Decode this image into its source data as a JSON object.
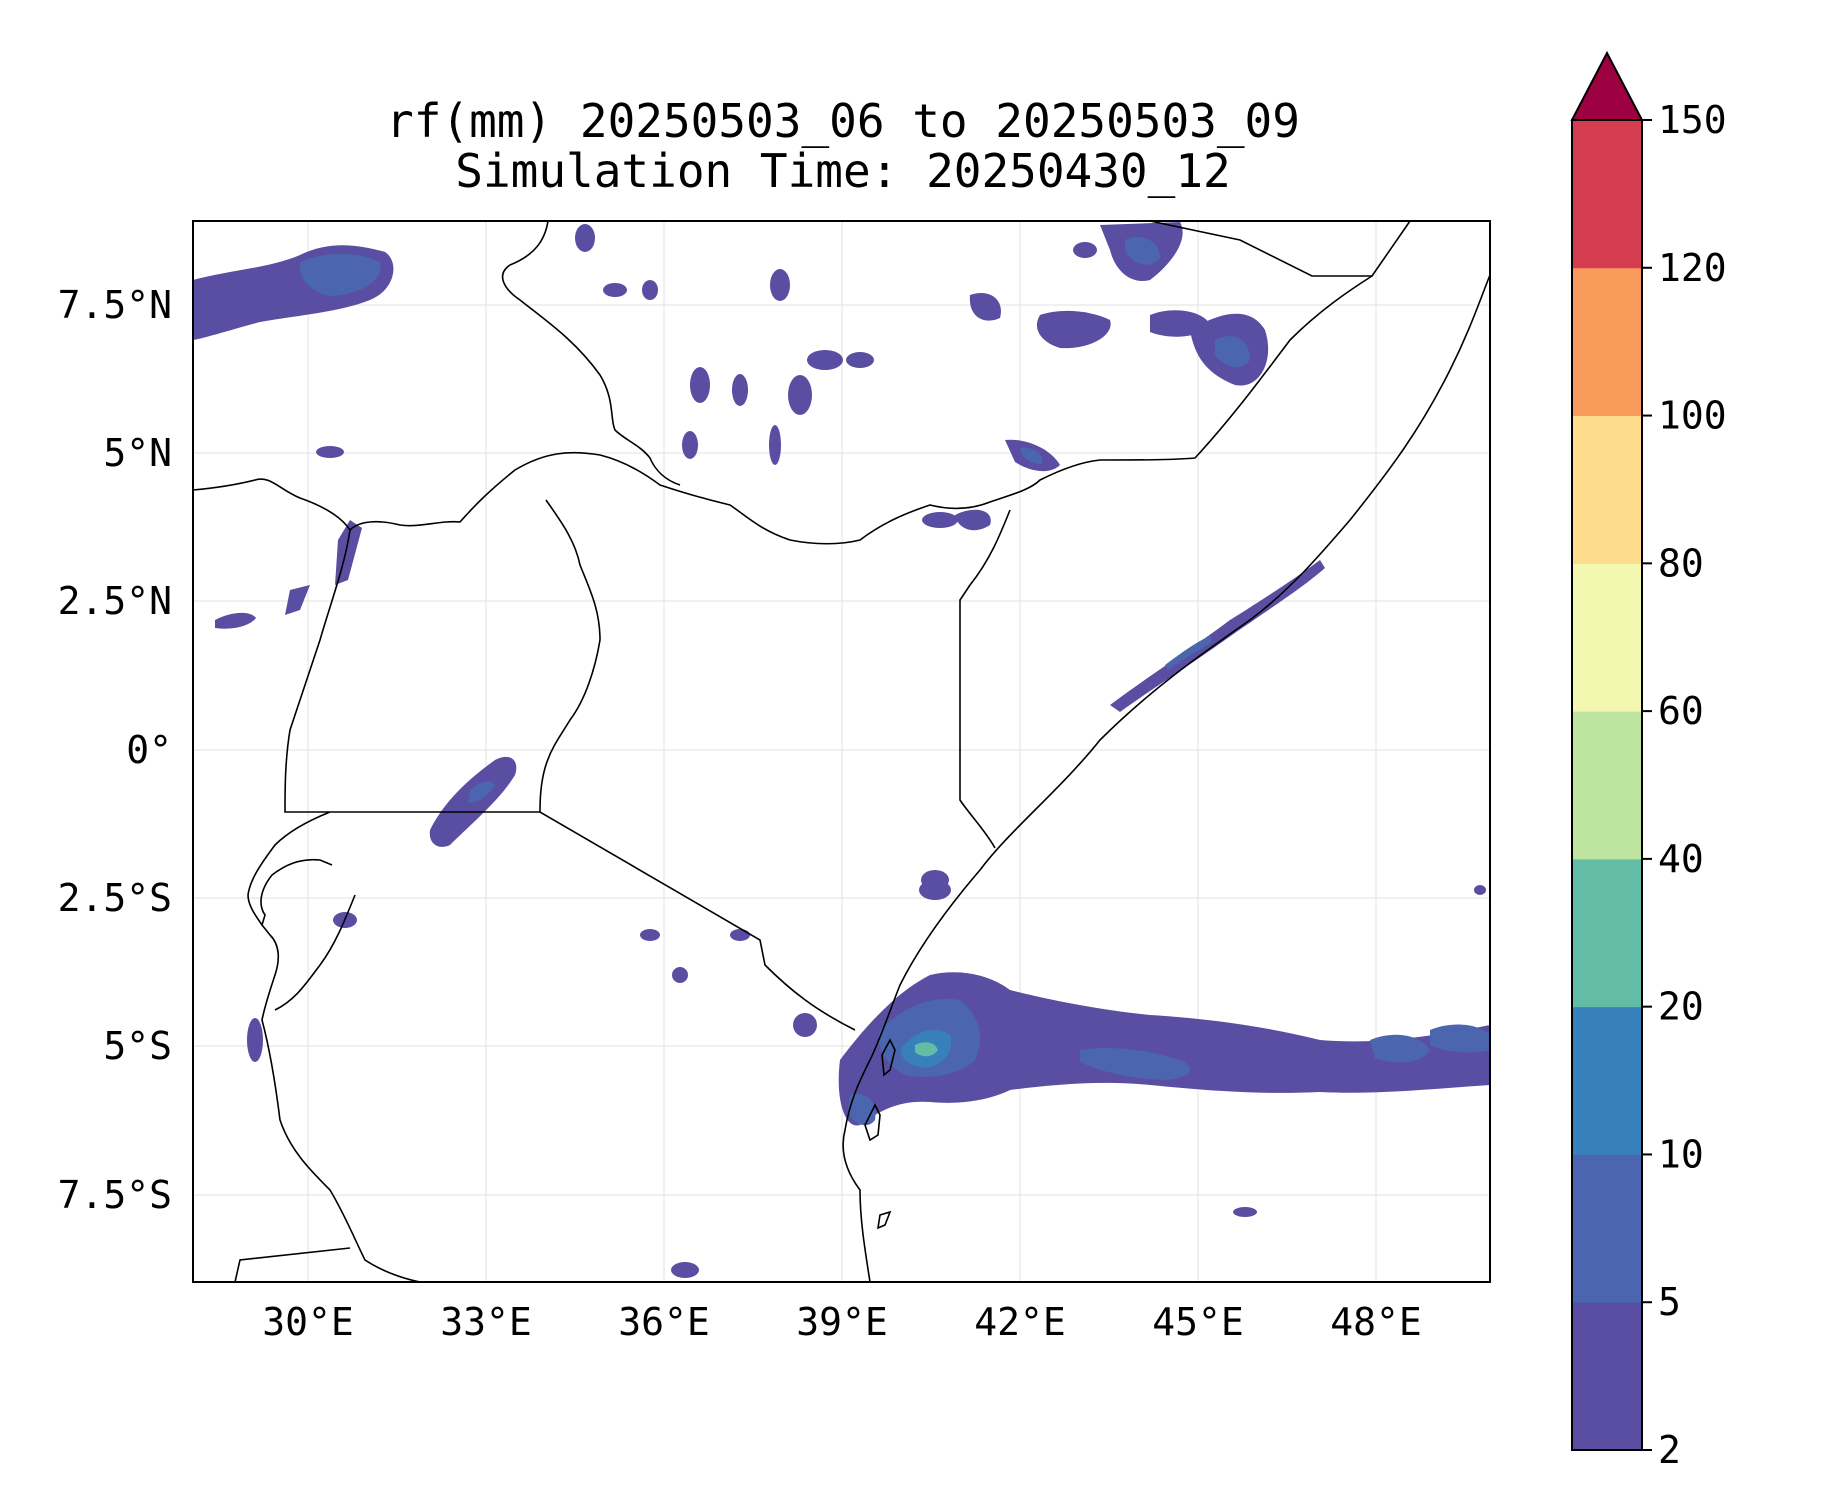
{
  "title": {
    "line1": "rf(mm) 20250503_06 to 20250503_09",
    "line2": "Simulation Time: 20250430_12"
  },
  "map": {
    "x_tick_labels": [
      "30°E",
      "33°E",
      "36°E",
      "39°E",
      "42°E",
      "45°E",
      "48°E"
    ],
    "y_tick_labels": [
      "7.5°N",
      "5°N",
      "2.5°N",
      "0°",
      "2.5°S",
      "5°S",
      "7.5°S"
    ],
    "extent": {
      "lon": [
        28.1,
        49.9
      ],
      "lat": [
        -8.9,
        8.9
      ]
    }
  },
  "colorbar": {
    "tick_labels": [
      "2",
      "5",
      "10",
      "20",
      "40",
      "60",
      "80",
      "100",
      "120",
      "150"
    ],
    "colors": [
      "#5a4ea2",
      "#4b65ae",
      "#3880b9",
      "#63bca6",
      "#bde5a0",
      "#f2f8b0",
      "#fddd8d",
      "#f99c5b",
      "#d43d4f",
      "#9e0142"
    ],
    "extend": "max"
  }
}
